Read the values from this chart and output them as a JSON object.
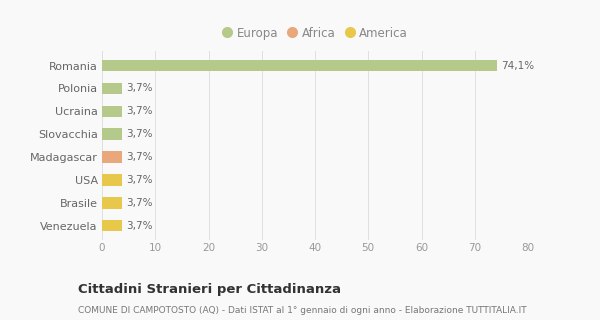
{
  "categories": [
    "Romania",
    "Polonia",
    "Ucraina",
    "Slovacchia",
    "Madagascar",
    "USA",
    "Brasile",
    "Venezuela"
  ],
  "values": [
    74.1,
    3.7,
    3.7,
    3.7,
    3.7,
    3.7,
    3.7,
    3.7
  ],
  "labels": [
    "74,1%",
    "3,7%",
    "3,7%",
    "3,7%",
    "3,7%",
    "3,7%",
    "3,7%",
    "3,7%"
  ],
  "colors": [
    "#b5c98a",
    "#b5c98a",
    "#b5c98a",
    "#b5c98a",
    "#e8a87c",
    "#e8c84a",
    "#e8c84a",
    "#e8c84a"
  ],
  "legend": [
    {
      "label": "Europa",
      "color": "#b5c98a"
    },
    {
      "label": "Africa",
      "color": "#e8a87c"
    },
    {
      "label": "America",
      "color": "#e8c84a"
    }
  ],
  "xlim": [
    0,
    80
  ],
  "xticks": [
    0,
    10,
    20,
    30,
    40,
    50,
    60,
    70,
    80
  ],
  "title": "Cittadini Stranieri per Cittadinanza",
  "subtitle": "COMUNE DI CAMPOTOSTO (AQ) - Dati ISTAT al 1° gennaio di ogni anno - Elaborazione TUTTITALIA.IT",
  "bg_color": "#f9f9f9",
  "grid_color": "#e0e0e0",
  "bar_height": 0.5,
  "label_fontsize": 7.5,
  "ytick_fontsize": 8,
  "xtick_fontsize": 7.5,
  "title_fontsize": 9.5,
  "subtitle_fontsize": 6.5,
  "legend_fontsize": 8.5
}
